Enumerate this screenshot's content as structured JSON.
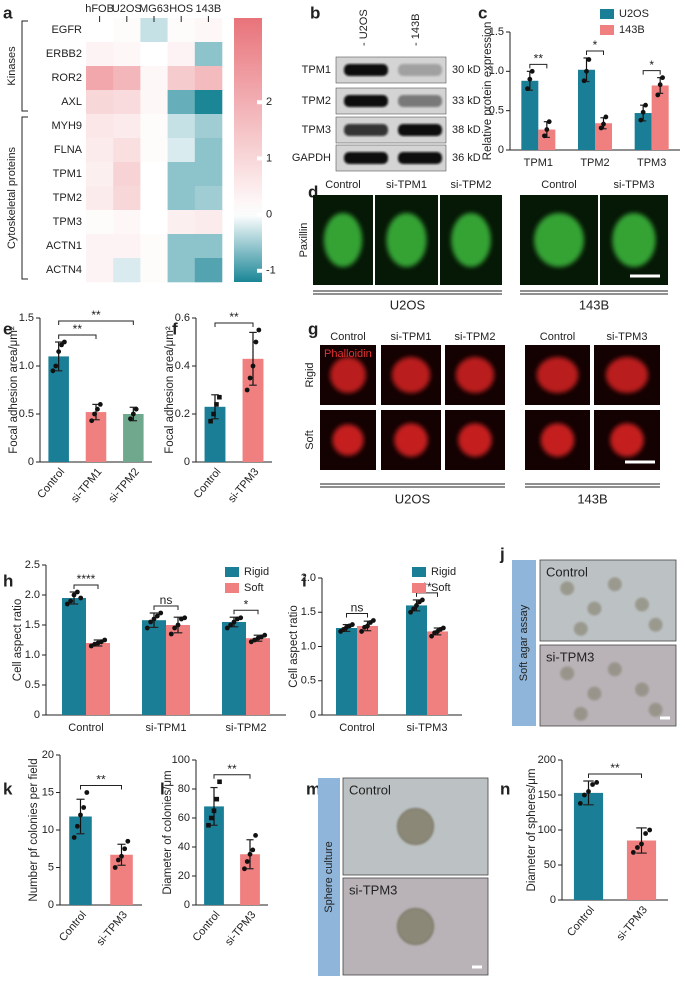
{
  "panel_labels": [
    "a",
    "b",
    "c",
    "d",
    "e",
    "f",
    "g",
    "h",
    "i",
    "j",
    "k",
    "l",
    "m",
    "n"
  ],
  "heatmap": {
    "columns": [
      "hFOB",
      "U2OS",
      "MG63",
      "HOS",
      "143B"
    ],
    "rows": [
      "EGFR",
      "ERBB2",
      "ROR2",
      "AXL",
      "MYH9",
      "FLNA",
      "TPM1",
      "TPM2",
      "TPM3",
      "ACTN1",
      "ACTN4"
    ],
    "values": [
      [
        0,
        0.1,
        -0.3,
        0.1,
        0.2
      ],
      [
        0.3,
        0.2,
        0,
        0.3,
        -0.6
      ],
      [
        2.2,
        1.8,
        0.2,
        1.3,
        1.7
      ],
      [
        1.0,
        0.9,
        0.2,
        -0.8,
        -1.2
      ],
      [
        0.6,
        0.5,
        0.1,
        -0.3,
        -0.5
      ],
      [
        0.5,
        0.8,
        0.1,
        -0.2,
        -0.6
      ],
      [
        0.4,
        1.1,
        0,
        -0.6,
        -0.6
      ],
      [
        0.5,
        1.0,
        0,
        -0.6,
        -0.5
      ],
      [
        0.1,
        0.2,
        0,
        0.4,
        0.5
      ],
      [
        0.3,
        0.3,
        0.1,
        -0.6,
        -0.6
      ],
      [
        0.3,
        -0.2,
        0.1,
        -0.6,
        -0.9
      ]
    ],
    "groups": [
      {
        "name": "Kinases",
        "rows": [
          0,
          3
        ]
      },
      {
        "name": "Cytoskeletal proteins",
        "rows": [
          4,
          10
        ]
      }
    ],
    "clim": [
      -1.2,
      3.5
    ],
    "cticks": [
      2,
      1,
      0,
      -1
    ],
    "colors": {
      "negative": "#1a8696",
      "zero": "#ffffff",
      "positive": "#e8737a"
    }
  },
  "blot": {
    "lanes": [
      "- U2OS",
      "- 143B"
    ],
    "rows": [
      {
        "name": "TPM1",
        "size": "30 kD"
      },
      {
        "name": "TPM2",
        "size": "33 kD"
      },
      {
        "name": "TPM3",
        "size": "38 kD"
      },
      {
        "name": "GAPDH",
        "size": "36 kD"
      }
    ]
  },
  "images": {
    "d": {
      "columns": [
        "Control",
        "si-TPM1",
        "si-TPM2",
        "Control",
        "si-TPM3"
      ],
      "stain": "Paxillin",
      "groups": [
        "U2OS",
        "143B"
      ]
    },
    "g": {
      "columns": [
        "Control",
        "si-TPM1",
        "si-TPM2",
        "Control",
        "si-TPM3"
      ],
      "rows": [
        "Rigid",
        "Soft"
      ],
      "stain": "Phalloidin",
      "groups": [
        "U2OS",
        "143B"
      ]
    },
    "j": {
      "side_label": "Soft agar assay",
      "tiles": [
        "Control",
        "si-TPM3"
      ]
    },
    "m": {
      "side_label": "Sphere culture",
      "tiles": [
        "Control",
        "si-TPM3"
      ]
    }
  },
  "chart_data": [
    {
      "type": "bar",
      "ylabel": "Relative protein expression",
      "categories": [
        "TPM1",
        "TPM2",
        "TPM3"
      ],
      "series": [
        {
          "name": "U2OS",
          "color": "#1a7f96",
          "values": [
            0.88,
            1.02,
            0.47
          ],
          "errors": [
            0.12,
            0.15,
            0.1
          ],
          "points": [
            [
              0.78,
              0.9,
              1.0
            ],
            [
              0.88,
              1.0,
              1.15
            ],
            [
              0.38,
              0.48,
              0.57
            ]
          ]
        },
        {
          "name": "143B",
          "color": "#f07f7f",
          "values": [
            0.26,
            0.34,
            0.82
          ],
          "errors": [
            0.1,
            0.07,
            0.1
          ],
          "points": [
            [
              0.18,
              0.26,
              0.36
            ],
            [
              0.28,
              0.33,
              0.42
            ],
            [
              0.7,
              0.83,
              0.92
            ]
          ]
        }
      ],
      "ylim": [
        0,
        1.5
      ],
      "yticks": [
        0,
        0.5,
        {
          "value": 1,
          "label": "1.0"
        },
        1.5
      ],
      "legend": "top-right",
      "brackets": [
        {
          "label": "**",
          "category": 0
        },
        {
          "label": "*",
          "category": 1
        },
        {
          "label": "*",
          "category": 2
        }
      ]
    },
    {
      "type": "bar",
      "ylabel": "Focal adhesion area/μm²",
      "categories": [
        "Control",
        "si-TPM1",
        "si-TPM2"
      ],
      "series": [
        {
          "colors": [
            "#1a7f96",
            "#f07f7f",
            "#6fa88c"
          ],
          "values": [
            1.1,
            0.52,
            0.5
          ],
          "errors": [
            0.15,
            0.08,
            0.07
          ],
          "points": [
            [
              0.95,
              1.0,
              1.15,
              1.22,
              1.25
            ],
            [
              0.43,
              0.5,
              0.55,
              0.6
            ],
            [
              0.45,
              0.5,
              0.55
            ]
          ]
        }
      ],
      "ylim": [
        0,
        1.5
      ],
      "yticks": [
        0,
        0.5,
        {
          "value": 1,
          "label": "1.0"
        },
        1.5
      ],
      "x_label_rotate": true,
      "brackets": [
        {
          "label": "**",
          "between": [
            0,
            1
          ]
        },
        {
          "label": "**",
          "between": [
            0,
            2
          ]
        }
      ]
    },
    {
      "type": "bar",
      "ylabel": "Focal adhesion area/μm²",
      "categories": [
        "Control",
        "si-TPM3"
      ],
      "series": [
        {
          "colors": [
            "#1a7f96",
            "#f07f7f"
          ],
          "values": [
            0.23,
            0.43
          ],
          "errors": [
            0.05,
            0.11
          ],
          "points": [
            [
              0.17,
              0.2,
              0.24,
              0.27
            ],
            [
              0.3,
              0.35,
              0.4,
              0.5,
              0.55
            ]
          ]
        }
      ],
      "ylim": [
        0,
        0.6
      ],
      "yticks": [
        0,
        0.2,
        0.4,
        0.6
      ],
      "x_label_rotate": true,
      "brackets": [
        {
          "label": "**",
          "between": [
            0,
            1
          ]
        }
      ]
    },
    {
      "type": "bar",
      "ylabel": "Cell aspect ratio",
      "categories": [
        "Control",
        "si-TPM1",
        "si-TPM2"
      ],
      "series": [
        {
          "name": "Rigid",
          "color": "#1a7f96",
          "values": [
            1.95,
            1.58,
            1.55
          ],
          "errors": [
            0.1,
            0.12,
            0.08
          ],
          "points": [
            [
              1.85,
              1.9,
              2.0,
              2.05,
              1.95
            ],
            [
              1.45,
              1.55,
              1.6,
              1.65,
              1.7
            ],
            [
              1.45,
              1.5,
              1.55,
              1.6,
              1.62
            ]
          ]
        },
        {
          "name": "Soft",
          "color": "#f07f7f",
          "values": [
            1.2,
            1.5,
            1.28
          ],
          "errors": [
            0.05,
            0.13,
            0.05
          ],
          "points": [
            [
              1.15,
              1.18,
              1.2,
              1.22,
              1.25
            ],
            [
              1.35,
              1.45,
              1.5,
              1.6,
              1.62
            ],
            [
              1.22,
              1.25,
              1.28,
              1.3,
              1.33
            ]
          ]
        }
      ],
      "ylim": [
        0,
        2.5
      ],
      "yticks": [
        0,
        0.5,
        {
          "value": 1,
          "label": "1.0"
        },
        1.5,
        {
          "value": 2,
          "label": "2.0"
        },
        2.5
      ],
      "legend": "top-right",
      "brackets": [
        {
          "label": "****",
          "category": 0
        },
        {
          "label": "ns",
          "category": 1
        },
        {
          "label": "*",
          "category": 2
        }
      ]
    },
    {
      "type": "bar",
      "ylabel": "Cell aspect ratio",
      "categories": [
        "Control",
        "si-TPM3"
      ],
      "series": [
        {
          "name": "Rigid",
          "color": "#1a7f96",
          "values": [
            1.27,
            1.6
          ],
          "errors": [
            0.05,
            0.08
          ],
          "points": [
            [
              1.22,
              1.25,
              1.28,
              1.3,
              1.32
            ],
            [
              1.5,
              1.55,
              1.6,
              1.65,
              1.68
            ]
          ]
        },
        {
          "name": "Soft",
          "color": "#f07f7f",
          "values": [
            1.3,
            1.22
          ],
          "errors": [
            0.07,
            0.05
          ],
          "points": [
            [
              1.22,
              1.28,
              1.3,
              1.35,
              1.38
            ],
            [
              1.15,
              1.2,
              1.22,
              1.25,
              1.27
            ]
          ]
        }
      ],
      "ylim": [
        0,
        2
      ],
      "yticks": [
        0,
        0.5,
        {
          "value": 1,
          "label": "1.0"
        },
        1.5,
        {
          "value": 2,
          "label": "2.0"
        }
      ],
      "legend": "top-right",
      "brackets": [
        {
          "label": "ns",
          "category": 0
        },
        {
          "label": "**",
          "category": 1
        }
      ]
    },
    {
      "type": "bar",
      "ylabel": "Number pf colonies per field",
      "categories": [
        "Control",
        "si-TPM3"
      ],
      "series": [
        {
          "colors": [
            "#1a7f96",
            "#f07f7f"
          ],
          "values": [
            11.8,
            6.7
          ],
          "errors": [
            2.3,
            1.4
          ],
          "points": [
            [
              9,
              10.5,
              12,
              13,
              15
            ],
            [
              5,
              6,
              6.5,
              7.5,
              8.5
            ]
          ]
        }
      ],
      "ylim": [
        0,
        20
      ],
      "yticks": [
        0,
        5,
        10,
        15,
        20
      ],
      "x_label_rotate": true,
      "brackets": [
        {
          "label": "**",
          "between": [
            0,
            1
          ]
        }
      ]
    },
    {
      "type": "bar",
      "ylabel": "Diameter of colonies/μm",
      "categories": [
        "Control",
        "si-TPM3"
      ],
      "series": [
        {
          "colors": [
            "#1a7f96",
            "#f07f7f"
          ],
          "values": [
            68,
            35
          ],
          "errors": [
            13,
            10
          ],
          "points": [
            [
              55,
              60,
              65,
              73,
              85
            ],
            [
              25,
              30,
              35,
              38,
              48
            ]
          ]
        }
      ],
      "ylim": [
        0,
        100
      ],
      "yticks": [
        0,
        20,
        40,
        60,
        80,
        100
      ],
      "x_label_rotate": true,
      "brackets": [
        {
          "label": "**",
          "between": [
            0,
            1
          ]
        }
      ]
    },
    {
      "type": "bar",
      "ylabel": "Diameter of spheres/μm",
      "categories": [
        "Control",
        "si-TPM3"
      ],
      "series": [
        {
          "colors": [
            "#1a7f96",
            "#f07f7f"
          ],
          "values": [
            153,
            85
          ],
          "errors": [
            17,
            18
          ],
          "points": [
            [
              138,
              150,
              155,
              165,
              168
            ],
            [
              68,
              75,
              80,
              95,
              100
            ]
          ]
        }
      ],
      "ylim": [
        0,
        200
      ],
      "yticks": [
        0,
        50,
        100,
        150,
        200
      ],
      "x_label_rotate": true,
      "brackets": [
        {
          "label": "**",
          "between": [
            0,
            1
          ]
        }
      ]
    }
  ]
}
